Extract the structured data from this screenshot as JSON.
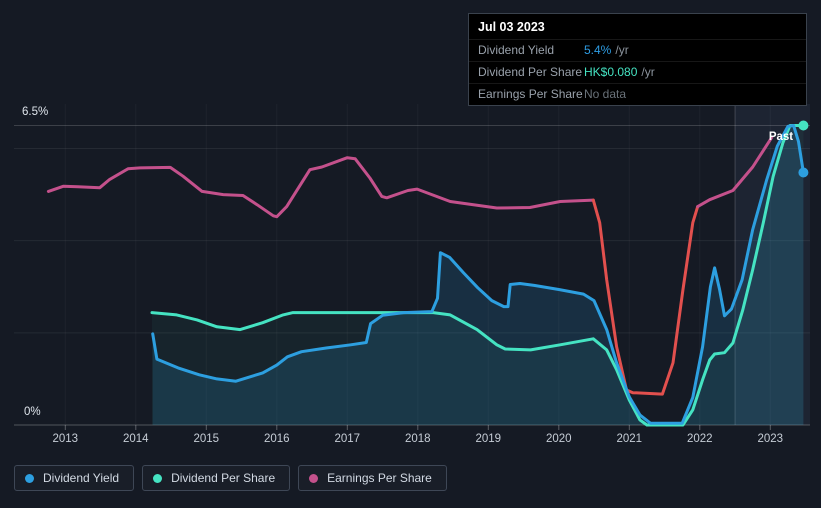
{
  "tooltip": {
    "date": "Jul 03 2023",
    "rows": [
      {
        "label": "Dividend Yield",
        "value": "5.4%",
        "unit": "/yr",
        "color": "#2e9de4"
      },
      {
        "label": "Dividend Per Share",
        "value": "HK$0.080",
        "unit": "/yr",
        "color": "#45e3c2"
      },
      {
        "label": "Earnings Per Share",
        "value": "No data",
        "unit": "",
        "color": "#697179"
      }
    ]
  },
  "legend": {
    "items": [
      {
        "label": "Dividend Yield",
        "color": "#2d9fe0"
      },
      {
        "label": "Dividend Per Share",
        "color": "#45e3c2"
      },
      {
        "label": "Earnings Per Share",
        "color": "#c4518c"
      }
    ]
  },
  "chart_data": {
    "type": "line",
    "x_ticks": [
      2013,
      2014,
      2015,
      2016,
      2017,
      2018,
      2019,
      2020,
      2021,
      2022,
      2023
    ],
    "y_axis": {
      "top_label": "6.5%",
      "bottom_label": "0%",
      "max_pct": 6.5,
      "min_pct": 0,
      "gridlines_pct": [
        2,
        4,
        6
      ]
    },
    "past_label": "Past",
    "past_start_year": 2022.5,
    "series": [
      {
        "name": "Earnings Per Share",
        "color": "#c4518c",
        "area_opacity": 0,
        "end_dot": false,
        "segments": [
          {
            "color": "#c4518c",
            "points": [
              [
                2012.76,
                5.07
              ],
              [
                2012.97,
                5.18
              ],
              [
                2013.18,
                5.17
              ],
              [
                2013.49,
                5.15
              ],
              [
                2013.63,
                5.33
              ],
              [
                2013.89,
                5.56
              ],
              [
                2014.06,
                5.58
              ],
              [
                2014.49,
                5.59
              ],
              [
                2014.67,
                5.4
              ],
              [
                2014.94,
                5.07
              ],
              [
                2015.24,
                5.0
              ],
              [
                2015.52,
                4.98
              ],
              [
                2015.72,
                4.78
              ],
              [
                2015.95,
                4.54
              ],
              [
                2016.0,
                4.52
              ],
              [
                2016.14,
                4.74
              ],
              [
                2016.47,
                5.54
              ],
              [
                2016.64,
                5.6
              ],
              [
                2017.0,
                5.8
              ],
              [
                2017.11,
                5.78
              ],
              [
                2017.32,
                5.36
              ],
              [
                2017.49,
                4.96
              ],
              [
                2017.56,
                4.93
              ],
              [
                2017.86,
                5.09
              ],
              [
                2017.99,
                5.12
              ],
              [
                2018.46,
                4.85
              ],
              [
                2019.12,
                4.71
              ],
              [
                2019.59,
                4.72
              ],
              [
                2020.02,
                4.85
              ],
              [
                2020.49,
                4.88
              ]
            ]
          },
          {
            "color": "#e2504e",
            "points": [
              [
                2020.49,
                4.88
              ],
              [
                2020.58,
                4.39
              ],
              [
                2020.68,
                3.15
              ],
              [
                2020.82,
                1.7
              ],
              [
                2020.96,
                0.76
              ],
              [
                2021.05,
                0.7
              ],
              [
                2021.47,
                0.67
              ],
              [
                2021.62,
                1.35
              ],
              [
                2021.76,
                2.93
              ],
              [
                2021.9,
                4.39
              ],
              [
                2021.97,
                4.74
              ]
            ]
          },
          {
            "color": "#c4518c",
            "points": [
              [
                2021.97,
                4.74
              ],
              [
                2022.14,
                4.89
              ],
              [
                2022.47,
                5.09
              ],
              [
                2022.75,
                5.6
              ],
              [
                2023.02,
                6.24
              ]
            ]
          }
        ]
      },
      {
        "name": "Dividend Per Share",
        "color": "#45e3c2",
        "area_opacity": 0.05,
        "end_dot": true,
        "points": [
          [
            2014.23,
            2.44
          ],
          [
            2014.58,
            2.39
          ],
          [
            2014.87,
            2.28
          ],
          [
            2015.15,
            2.13
          ],
          [
            2015.48,
            2.07
          ],
          [
            2015.8,
            2.22
          ],
          [
            2016.09,
            2.39
          ],
          [
            2016.23,
            2.44
          ],
          [
            2018.22,
            2.44
          ],
          [
            2018.46,
            2.39
          ],
          [
            2018.84,
            2.07
          ],
          [
            2019.12,
            1.74
          ],
          [
            2019.24,
            1.65
          ],
          [
            2019.6,
            1.63
          ],
          [
            2020.02,
            1.74
          ],
          [
            2020.49,
            1.87
          ],
          [
            2020.68,
            1.63
          ],
          [
            2020.82,
            1.2
          ],
          [
            2021.0,
            0.54
          ],
          [
            2021.15,
            0.11
          ],
          [
            2021.25,
            0.0
          ],
          [
            2021.76,
            0.0
          ],
          [
            2021.9,
            0.33
          ],
          [
            2022.04,
            0.98
          ],
          [
            2022.14,
            1.41
          ],
          [
            2022.21,
            1.54
          ],
          [
            2022.35,
            1.57
          ],
          [
            2022.47,
            1.78
          ],
          [
            2022.61,
            2.5
          ],
          [
            2022.75,
            3.37
          ],
          [
            2022.9,
            4.39
          ],
          [
            2023.04,
            5.39
          ],
          [
            2023.18,
            6.13
          ],
          [
            2023.28,
            6.5
          ],
          [
            2023.47,
            6.5
          ]
        ]
      },
      {
        "name": "Dividend Yield",
        "color": "#2d9fe0",
        "area_opacity": 0.16,
        "end_dot": true,
        "points": [
          [
            2014.24,
            1.98
          ],
          [
            2014.3,
            1.43
          ],
          [
            2014.6,
            1.24
          ],
          [
            2014.9,
            1.09
          ],
          [
            2015.15,
            1.0
          ],
          [
            2015.42,
            0.95
          ],
          [
            2015.8,
            1.13
          ],
          [
            2016.0,
            1.3
          ],
          [
            2016.15,
            1.48
          ],
          [
            2016.35,
            1.59
          ],
          [
            2016.7,
            1.67
          ],
          [
            2017.05,
            1.74
          ],
          [
            2017.27,
            1.79
          ],
          [
            2017.33,
            2.2
          ],
          [
            2017.5,
            2.38
          ],
          [
            2017.8,
            2.44
          ],
          [
            2018.2,
            2.46
          ],
          [
            2018.28,
            2.75
          ],
          [
            2018.32,
            3.74
          ],
          [
            2018.45,
            3.64
          ],
          [
            2018.65,
            3.3
          ],
          [
            2018.85,
            2.98
          ],
          [
            2019.05,
            2.7
          ],
          [
            2019.22,
            2.57
          ],
          [
            2019.28,
            2.57
          ],
          [
            2019.31,
            3.05
          ],
          [
            2019.45,
            3.07
          ],
          [
            2019.65,
            3.03
          ],
          [
            2020.0,
            2.94
          ],
          [
            2020.35,
            2.84
          ],
          [
            2020.5,
            2.7
          ],
          [
            2020.68,
            2.07
          ],
          [
            2020.82,
            1.35
          ],
          [
            2021.0,
            0.61
          ],
          [
            2021.15,
            0.22
          ],
          [
            2021.3,
            0.04
          ],
          [
            2021.75,
            0.04
          ],
          [
            2021.9,
            0.6
          ],
          [
            2022.04,
            1.7
          ],
          [
            2022.15,
            3.0
          ],
          [
            2022.21,
            3.41
          ],
          [
            2022.28,
            2.95
          ],
          [
            2022.35,
            2.37
          ],
          [
            2022.45,
            2.52
          ],
          [
            2022.6,
            3.15
          ],
          [
            2022.75,
            4.24
          ],
          [
            2022.95,
            5.33
          ],
          [
            2023.1,
            6.05
          ],
          [
            2023.25,
            6.48
          ],
          [
            2023.33,
            6.5
          ],
          [
            2023.4,
            6.15
          ],
          [
            2023.47,
            5.48
          ]
        ]
      }
    ]
  }
}
